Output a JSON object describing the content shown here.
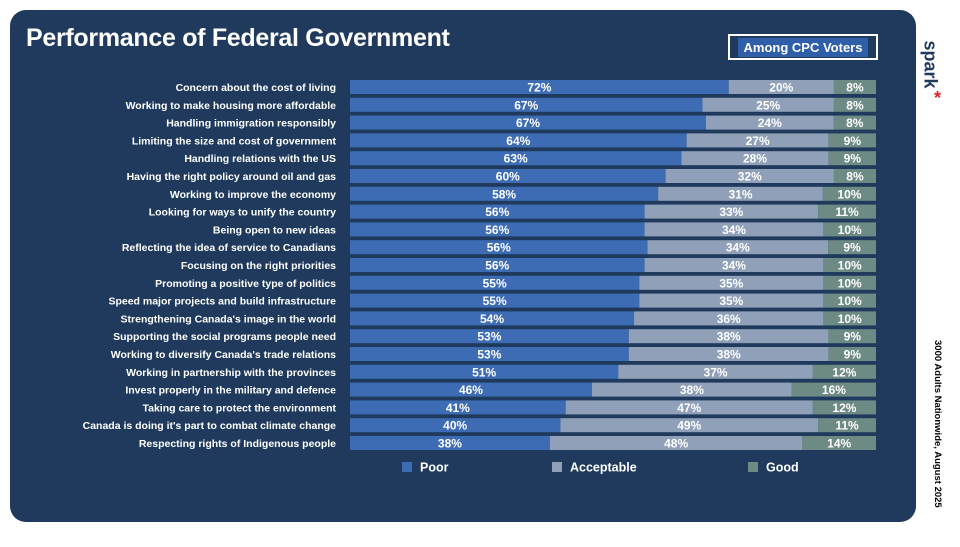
{
  "header": {
    "title": "Performance of Federal Government",
    "badge": "Among CPC Voters"
  },
  "brand": {
    "logo_text": "spark",
    "logo_mark": "*"
  },
  "source_note": "3000 Adults Nationwide, August 2025",
  "colors": {
    "panel": "#1f3a5c",
    "poor": "#3d6cb4",
    "acceptable": "#8fa0b8",
    "good": "#6d8a84"
  },
  "chart_data": {
    "type": "bar",
    "orientation": "horizontal",
    "stacked": true,
    "categories": [
      "Concern about the cost of living",
      "Working to make housing more affordable",
      "Handling immigration responsibly",
      "Limiting the size and cost of government",
      "Handling relations with the US",
      "Having the right policy around oil and gas",
      "Working to improve the economy",
      "Looking for ways to unify the country",
      "Being open to new ideas",
      "Reflecting the idea of service to Canadians",
      "Focusing on the right priorities",
      "Promoting a positive type of politics",
      "Speed major projects and build infrastructure",
      "Strengthening Canada's image in the world",
      "Supporting the social programs people need",
      "Working to diversify Canada's trade relations",
      "Working in partnership with the provinces",
      "Invest properly in the military and defence",
      "Taking care to protect the environment",
      "Canada is doing it's part to combat climate change",
      "Respecting rights of Indigenous people"
    ],
    "series": [
      {
        "name": "Poor",
        "color": "#3d6cb4",
        "values": [
          72,
          67,
          67,
          64,
          63,
          60,
          58,
          56,
          56,
          56,
          56,
          55,
          55,
          54,
          53,
          53,
          51,
          46,
          41,
          40,
          38
        ]
      },
      {
        "name": "Acceptable",
        "color": "#8fa0b8",
        "values": [
          20,
          25,
          24,
          27,
          28,
          32,
          31,
          33,
          34,
          34,
          34,
          35,
          35,
          36,
          38,
          38,
          37,
          38,
          47,
          49,
          48
        ]
      },
      {
        "name": "Good",
        "color": "#6d8a84",
        "values": [
          8,
          8,
          8,
          9,
          9,
          8,
          10,
          11,
          10,
          9,
          10,
          10,
          10,
          10,
          9,
          9,
          12,
          16,
          12,
          11,
          14
        ]
      }
    ],
    "value_suffix": "%",
    "legend_position": "bottom",
    "grid": false
  }
}
